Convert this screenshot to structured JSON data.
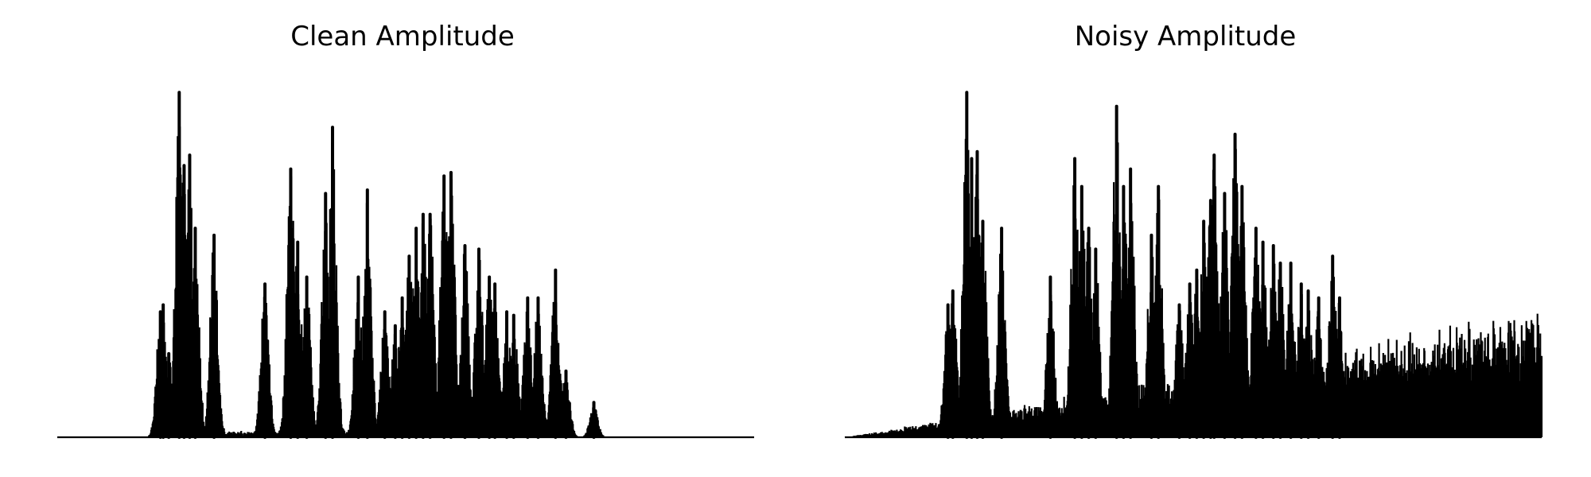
{
  "colors": {
    "line": "#000000",
    "background": "#ffffff"
  },
  "chart_data": [
    {
      "type": "line",
      "title": "Clean Amplitude",
      "xlabel": "",
      "ylabel": "",
      "axes_visible": false,
      "grid": false,
      "xlim": [
        0,
        1.0
      ],
      "ylim": [
        0,
        1.05
      ],
      "series": [
        {
          "peaks": [
            [
              0.148,
              0.36
            ],
            [
              0.152,
              0.38
            ],
            [
              0.16,
              0.24
            ],
            [
              0.175,
              0.99
            ],
            [
              0.182,
              0.78
            ],
            [
              0.19,
              0.81
            ],
            [
              0.198,
              0.6
            ],
            [
              0.225,
              0.58
            ],
            [
              0.298,
              0.44
            ],
            [
              0.335,
              0.77
            ],
            [
              0.345,
              0.56
            ],
            [
              0.358,
              0.46
            ],
            [
              0.385,
              0.7
            ],
            [
              0.395,
              0.89
            ],
            [
              0.432,
              0.46
            ],
            [
              0.445,
              0.71
            ],
            [
              0.47,
              0.36
            ],
            [
              0.485,
              0.32
            ],
            [
              0.495,
              0.4
            ],
            [
              0.505,
              0.52
            ],
            [
              0.515,
              0.6
            ],
            [
              0.525,
              0.64
            ],
            [
              0.535,
              0.64
            ],
            [
              0.555,
              0.75
            ],
            [
              0.565,
              0.76
            ],
            [
              0.585,
              0.55
            ],
            [
              0.585,
              0.34
            ],
            [
              0.605,
              0.54
            ],
            [
              0.62,
              0.46
            ],
            [
              0.628,
              0.44
            ],
            [
              0.645,
              0.36
            ],
            [
              0.655,
              0.35
            ],
            [
              0.675,
              0.4
            ],
            [
              0.69,
              0.4
            ],
            [
              0.715,
              0.48
            ],
            [
              0.73,
              0.19
            ],
            [
              0.77,
              0.1
            ]
          ]
        }
      ]
    },
    {
      "type": "line",
      "title": "Noisy Amplitude",
      "xlabel": "",
      "ylabel": "",
      "axes_visible": false,
      "grid": false,
      "xlim": [
        0,
        1.0
      ],
      "ylim": [
        0,
        1.05
      ],
      "noise_floor": {
        "start": 0.0,
        "end": 0.38
      },
      "series": [
        {
          "peaks": [
            [
              0.148,
              0.38
            ],
            [
              0.155,
              0.42
            ],
            [
              0.175,
              0.99
            ],
            [
              0.182,
              0.8
            ],
            [
              0.19,
              0.82
            ],
            [
              0.198,
              0.62
            ],
            [
              0.225,
              0.6
            ],
            [
              0.295,
              0.46
            ],
            [
              0.33,
              0.8
            ],
            [
              0.34,
              0.72
            ],
            [
              0.35,
              0.6
            ],
            [
              0.36,
              0.54
            ],
            [
              0.39,
              0.95
            ],
            [
              0.4,
              0.72
            ],
            [
              0.41,
              0.77
            ],
            [
              0.44,
              0.58
            ],
            [
              0.45,
              0.72
            ],
            [
              0.48,
              0.38
            ],
            [
              0.495,
              0.44
            ],
            [
              0.505,
              0.48
            ],
            [
              0.515,
              0.62
            ],
            [
              0.525,
              0.68
            ],
            [
              0.53,
              0.81
            ],
            [
              0.545,
              0.7
            ],
            [
              0.56,
              0.87
            ],
            [
              0.57,
              0.72
            ],
            [
              0.59,
              0.6
            ],
            [
              0.6,
              0.56
            ],
            [
              0.615,
              0.55
            ],
            [
              0.625,
              0.5
            ],
            [
              0.64,
              0.5
            ],
            [
              0.655,
              0.44
            ],
            [
              0.665,
              0.42
            ],
            [
              0.68,
              0.4
            ],
            [
              0.7,
              0.52
            ],
            [
              0.71,
              0.4
            ]
          ]
        }
      ]
    }
  ]
}
